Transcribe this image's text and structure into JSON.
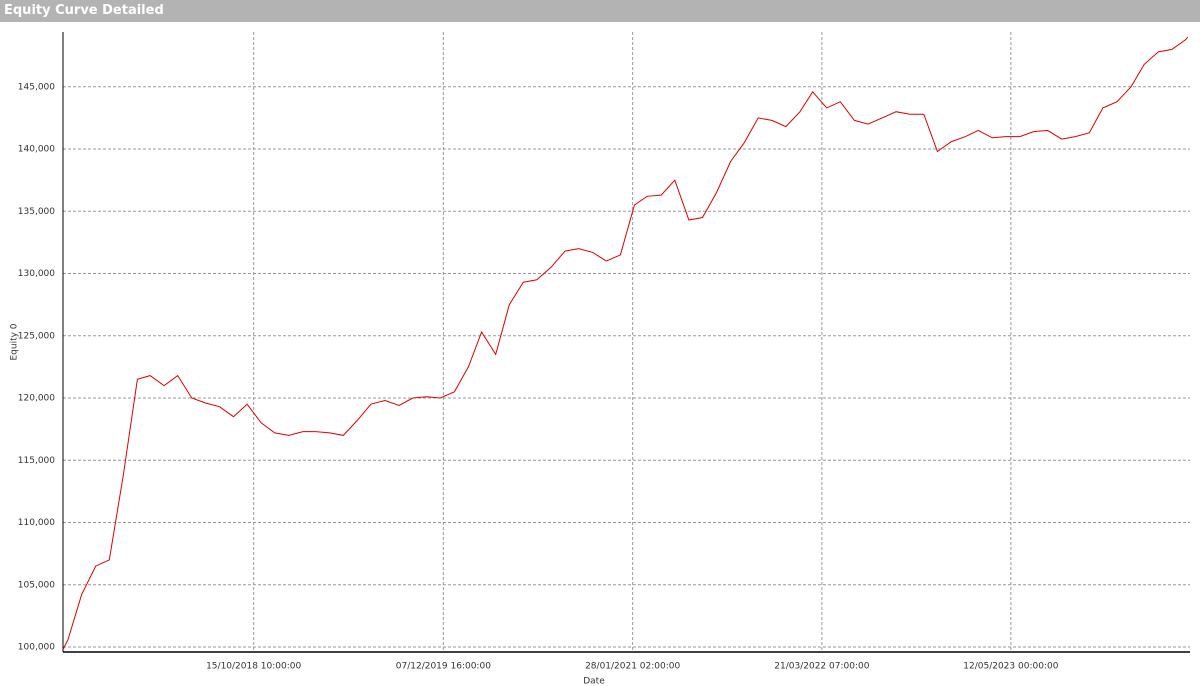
{
  "chart_data": {
    "type": "line",
    "title": "Equity Curve Detailed",
    "x_label": "Date",
    "y_label": "Equity 0",
    "x": [
      "2017-08-21T00:00",
      "2017-09-01T00:00",
      "2017-10-01T00:00",
      "2017-11-01T00:00",
      "2017-12-01T00:00",
      "2018-01-01T00:00",
      "2018-02-01T00:00",
      "2018-03-01T00:00",
      "2018-04-01T00:00",
      "2018-05-01T00:00",
      "2018-06-01T00:00",
      "2018-07-01T00:00",
      "2018-08-01T00:00",
      "2018-09-01T00:00",
      "2018-10-01T00:00",
      "2018-11-01T00:00",
      "2018-12-01T00:00",
      "2019-01-01T00:00",
      "2019-02-01T00:00",
      "2019-03-01T00:00",
      "2019-04-01T00:00",
      "2019-05-01T00:00",
      "2019-06-01T00:00",
      "2019-07-01T00:00",
      "2019-08-01T00:00",
      "2019-09-01T00:00",
      "2019-10-01T00:00",
      "2019-11-01T00:00",
      "2019-12-01T00:00",
      "2020-01-01T00:00",
      "2020-02-01T00:00",
      "2020-03-01T00:00",
      "2020-04-01T00:00",
      "2020-05-01T00:00",
      "2020-06-01T00:00",
      "2020-07-01T00:00",
      "2020-08-01T00:00",
      "2020-09-01T00:00",
      "2020-10-01T00:00",
      "2020-11-01T00:00",
      "2020-12-01T00:00",
      "2021-01-01T00:00",
      "2021-02-01T00:00",
      "2021-03-01T00:00",
      "2021-04-01T00:00",
      "2021-05-01T00:00",
      "2021-06-01T00:00",
      "2021-07-01T00:00",
      "2021-08-01T00:00",
      "2021-09-01T00:00",
      "2021-10-01T00:00",
      "2021-11-01T00:00",
      "2021-12-01T00:00",
      "2022-01-01T00:00",
      "2022-02-01T00:00",
      "2022-03-01T00:00",
      "2022-04-01T00:00",
      "2022-05-01T00:00",
      "2022-06-01T00:00",
      "2022-07-01T00:00",
      "2022-08-01T00:00",
      "2022-09-01T00:00",
      "2022-10-01T00:00",
      "2022-11-01T00:00",
      "2022-12-01T00:00",
      "2023-01-01T00:00",
      "2023-02-01T00:00",
      "2023-03-01T00:00",
      "2023-04-01T00:00",
      "2023-05-01T00:00",
      "2023-06-01T00:00",
      "2023-07-01T00:00",
      "2023-08-01T00:00",
      "2023-09-01T00:00",
      "2023-10-01T00:00",
      "2023-11-01T00:00",
      "2023-12-01T00:00",
      "2024-01-01T00:00",
      "2024-02-01T00:00",
      "2024-03-01T00:00",
      "2024-04-01T00:00",
      "2024-05-01T00:00",
      "2024-06-01T00:00",
      "2024-06-05T00:00"
    ],
    "series": [
      {
        "name": "Equity 0",
        "color": "#e00000",
        "values": [
          99800,
          100600,
          104200,
          106500,
          107000,
          113800,
          121500,
          121800,
          121000,
          121800,
          120000,
          119600,
          119300,
          118500,
          119500,
          118000,
          117200,
          117000,
          117300,
          117300,
          117200,
          117000,
          118200,
          119500,
          119800,
          119400,
          120000,
          120100,
          120000,
          120500,
          122500,
          125300,
          123500,
          127500,
          129300,
          129500,
          130500,
          131800,
          132000,
          131700,
          131000,
          131500,
          135500,
          136200,
          136300,
          137500,
          134300,
          134500,
          136500,
          139000,
          140500,
          142500,
          142300,
          141800,
          143000,
          144600,
          143300,
          143800,
          142300,
          142000,
          142500,
          143000,
          142800,
          142800,
          139800,
          140600,
          141000,
          141500,
          140900,
          141000,
          141000,
          141400,
          141500,
          140800,
          141000,
          141300,
          143300,
          143800,
          145000,
          146800,
          147800,
          148000,
          148800,
          149000
        ]
      }
    ],
    "xlim": [
      "2017-08-21T00:00",
      "2024-06-10T00:00"
    ],
    "xticks": [
      {
        "value": "2018-10-15T10:00",
        "label": "15/10/2018 10:00:00"
      },
      {
        "value": "2019-12-07T16:00",
        "label": "07/12/2019 16:00:00"
      },
      {
        "value": "2021-01-28T02:00",
        "label": "28/01/2021 02:00:00"
      },
      {
        "value": "2022-03-21T07:00",
        "label": "21/03/2022 07:00:00"
      },
      {
        "value": "2023-05-12T00:00",
        "label": "12/05/2023 00:00:00"
      }
    ],
    "ylim": [
      99600,
      149400
    ],
    "yticks": [
      {
        "value": 100000,
        "label": "100,000"
      },
      {
        "value": 105000,
        "label": "105,000"
      },
      {
        "value": 110000,
        "label": "110,000"
      },
      {
        "value": 115000,
        "label": "115,000"
      },
      {
        "value": 120000,
        "label": "120,000"
      },
      {
        "value": 125000,
        "label": "125,000"
      },
      {
        "value": 130000,
        "label": "130,000"
      },
      {
        "value": 135000,
        "label": "135,000"
      },
      {
        "value": 140000,
        "label": "140,000"
      },
      {
        "value": 145000,
        "label": "145,000"
      }
    ],
    "grid": true
  }
}
